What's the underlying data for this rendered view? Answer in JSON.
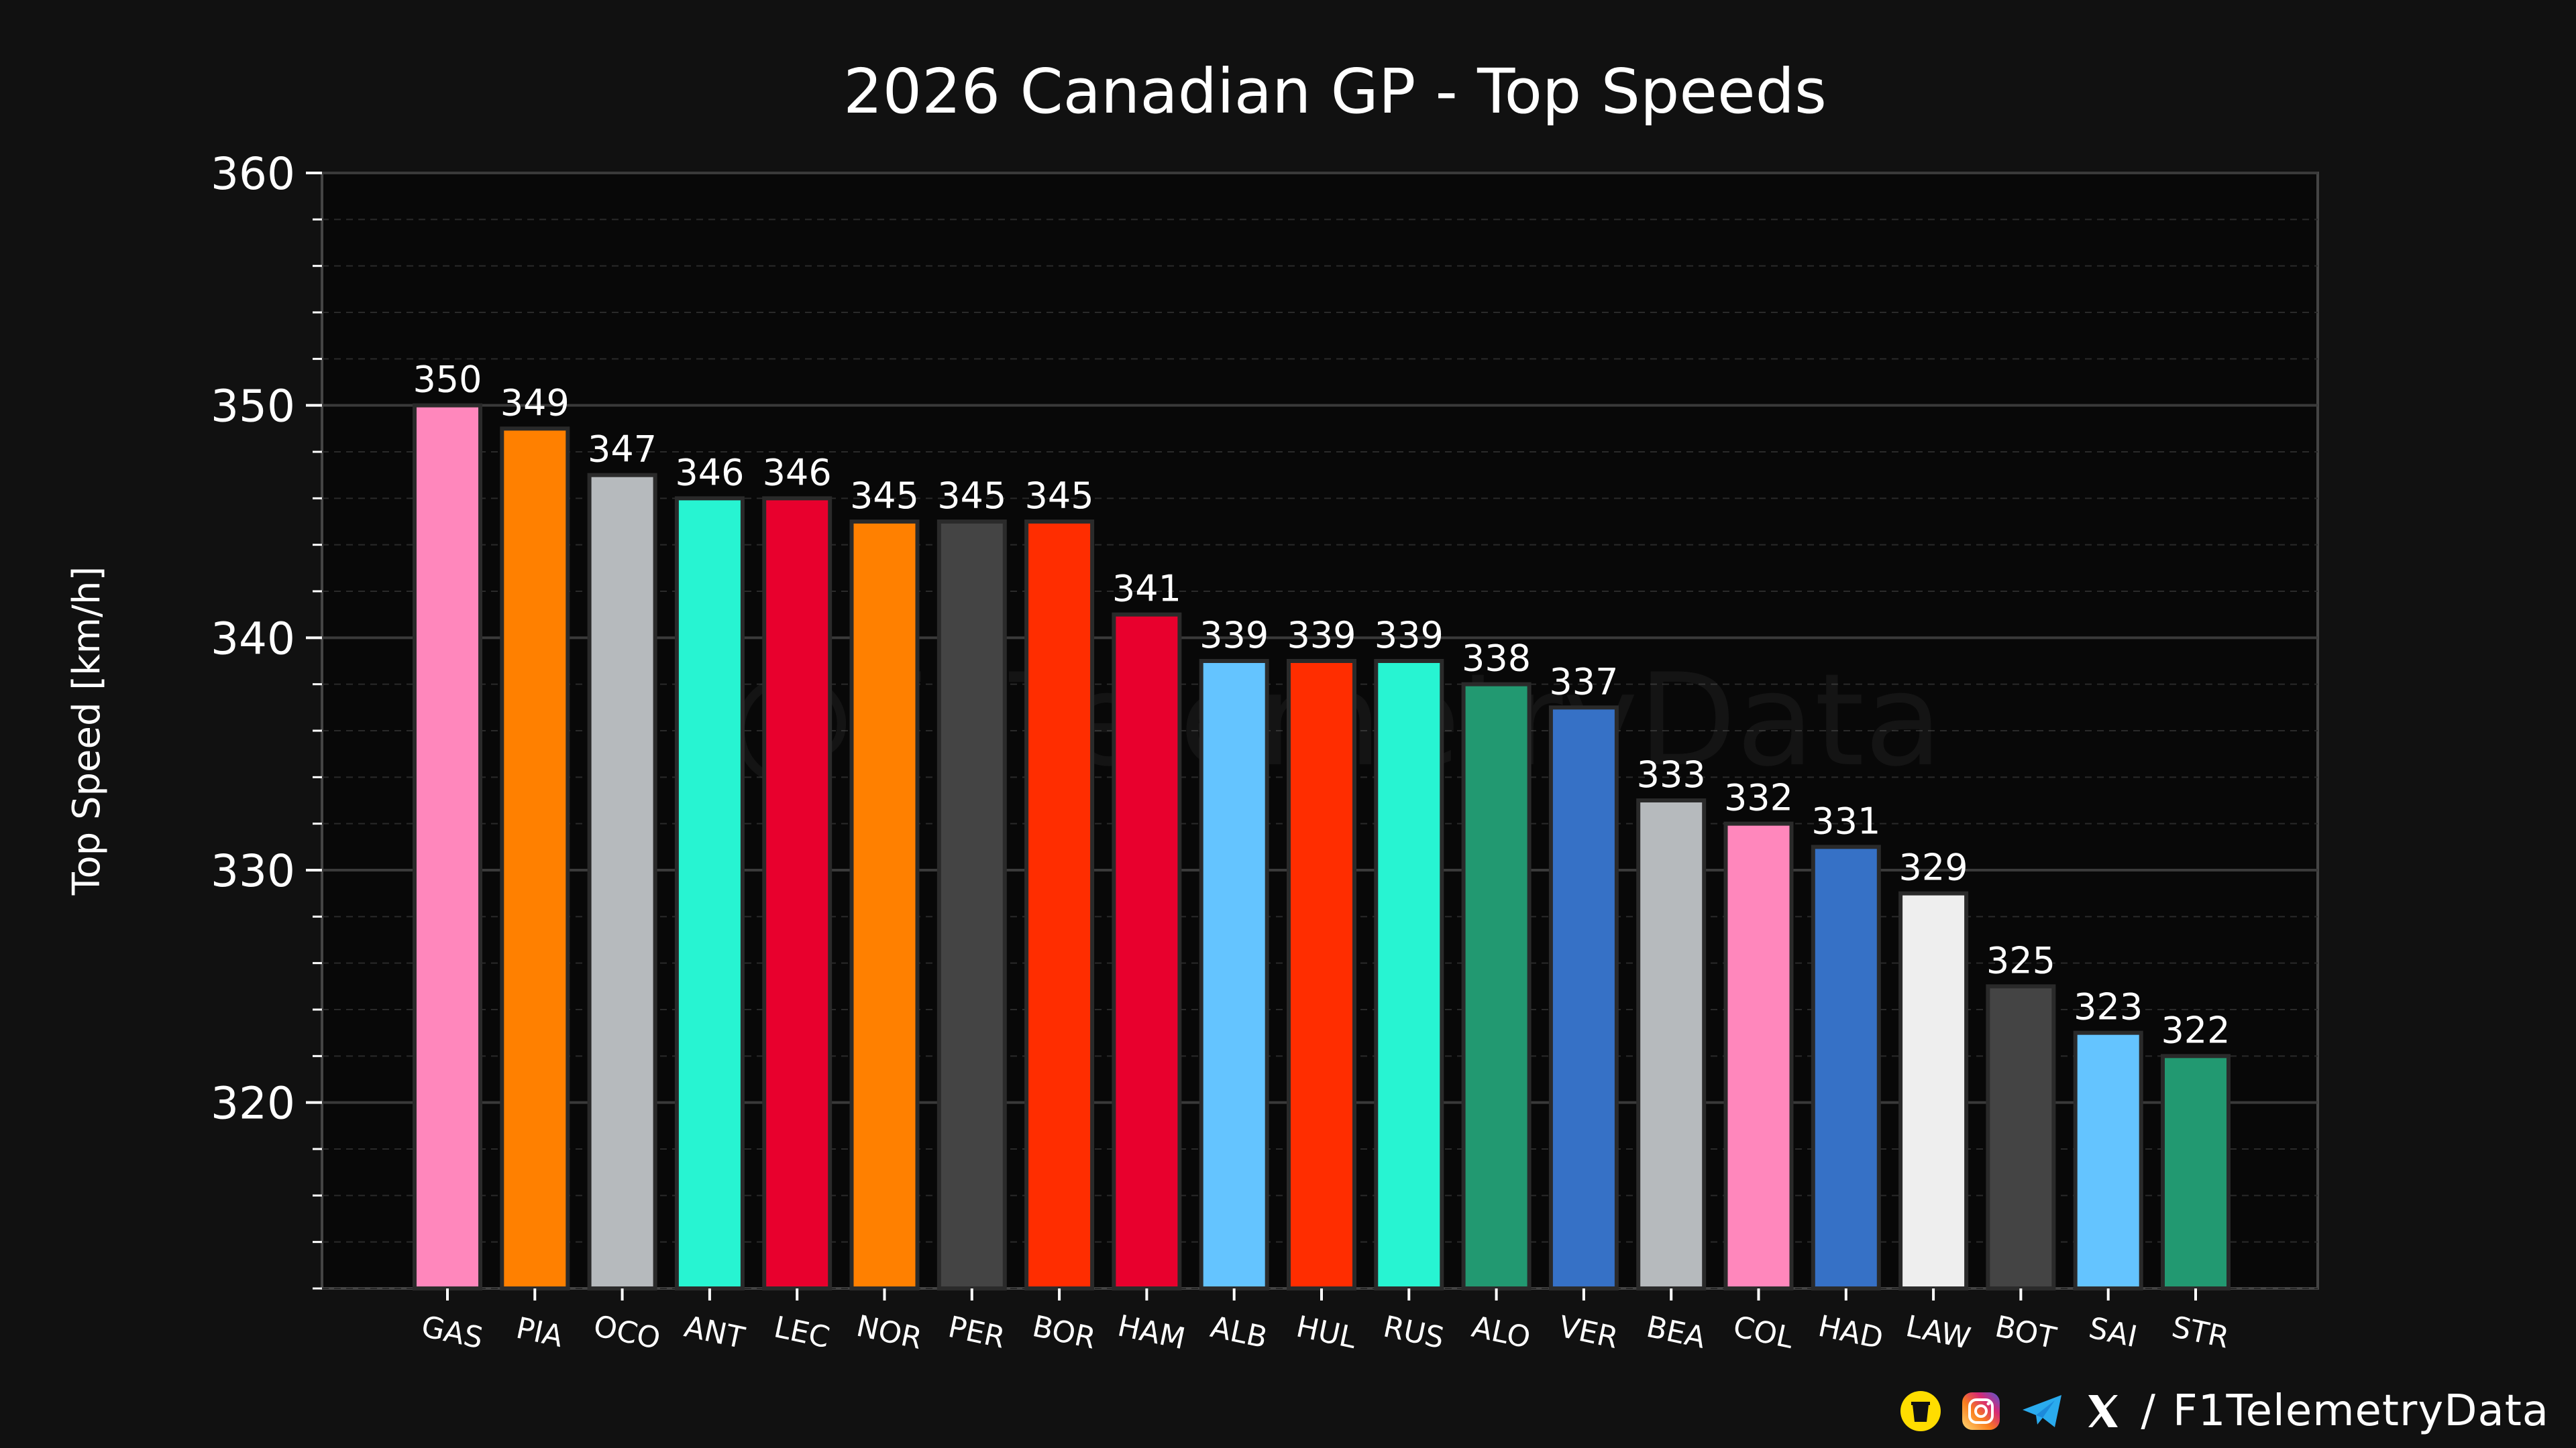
{
  "colors": {
    "background": "#111111",
    "plot_background": "#080808",
    "grid_major": "#3a3a3a",
    "grid_minor": "#2a2a2a",
    "text": "#ffffff",
    "bar_edge": "#2a2a2a"
  },
  "chart_data": {
    "type": "bar",
    "title": "2026 Canadian GP - Top Speeds",
    "xlabel": "",
    "ylabel": "Top Speed [km/h]",
    "ylim": [
      312,
      360
    ],
    "yticks": [
      320,
      330,
      340,
      350,
      360
    ],
    "grid": true,
    "categories": [
      "GAS",
      "PIA",
      "OCO",
      "ANT",
      "LEC",
      "NOR",
      "PER",
      "BOR",
      "HAM",
      "ALB",
      "HUL",
      "RUS",
      "ALO",
      "VER",
      "BEA",
      "COL",
      "HAD",
      "LAW",
      "BOT",
      "SAI",
      "STR"
    ],
    "values": [
      350,
      349,
      347,
      346,
      346,
      345,
      345,
      345,
      341,
      339,
      339,
      339,
      338,
      337,
      333,
      332,
      331,
      329,
      325,
      323,
      322
    ],
    "bar_colors": [
      "#FF87BC",
      "#FF8000",
      "#B6BABD",
      "#27F4D2",
      "#E8002D",
      "#FF8000",
      "#444444",
      "#FF2D00",
      "#E8002D",
      "#64C4FF",
      "#FF2D00",
      "#27F4D2",
      "#229971",
      "#3671C6",
      "#B6BABD",
      "#FF87BC",
      "#3671C6",
      "#EEEEEE",
      "#444444",
      "#64C4FF",
      "#229971"
    ]
  },
  "watermark": "@F1TelemetryData",
  "footer": {
    "icons": [
      "coffee-icon",
      "instagram-icon",
      "telegram-icon",
      "x-icon"
    ],
    "separator": "/",
    "handle": "F1TelemetryData"
  }
}
